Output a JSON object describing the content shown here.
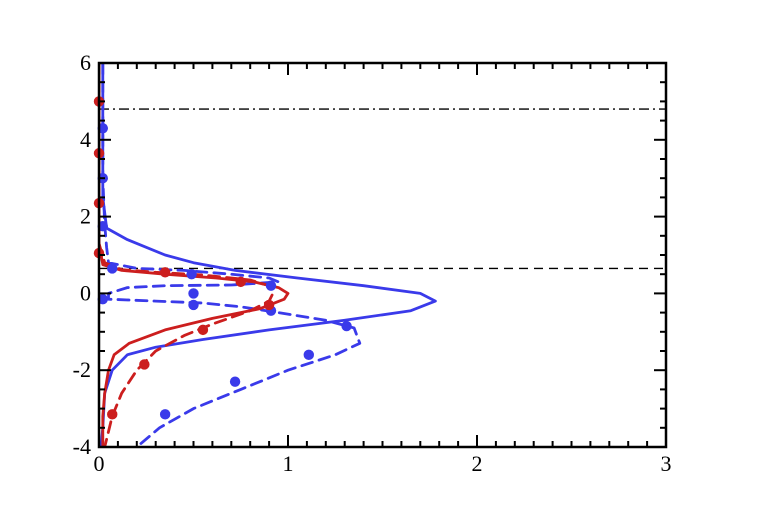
{
  "chart_data": {
    "type": "line",
    "title": "",
    "xlabel": "",
    "ylabel": "",
    "xlim": [
      0,
      3
    ],
    "ylim": [
      -4,
      6
    ],
    "grid": false,
    "legend": "none",
    "x_ticks": [
      0,
      1,
      2,
      3
    ],
    "x_tick_labels": [
      "0",
      "1",
      "2",
      "3"
    ],
    "y_ticks": [
      -4,
      -2,
      0,
      2,
      4,
      6
    ],
    "y_tick_labels": [
      "-4",
      "-2",
      "0",
      "2",
      "4",
      "6"
    ],
    "reference_lines": [
      {
        "orientation": "horizontal",
        "y": 4.8,
        "style": "dashdot",
        "color": "#000000"
      },
      {
        "orientation": "horizontal",
        "y": 0.65,
        "style": "dashed",
        "color": "#000000"
      }
    ],
    "series": [
      {
        "style": "solid",
        "color": "#3a3aea",
        "marker": "none",
        "points": [
          [
            0.02,
            6.0
          ],
          [
            0.02,
            2.5
          ],
          [
            0.04,
            1.7
          ],
          [
            0.15,
            1.4
          ],
          [
            0.35,
            1.0
          ],
          [
            0.5,
            0.8
          ],
          [
            0.72,
            0.6
          ],
          [
            1.05,
            0.4
          ],
          [
            1.4,
            0.2
          ],
          [
            1.7,
            0.0
          ],
          [
            1.78,
            -0.2
          ],
          [
            1.65,
            -0.45
          ],
          [
            1.3,
            -0.7
          ],
          [
            0.9,
            -0.95
          ],
          [
            0.55,
            -1.2
          ],
          [
            0.3,
            -1.4
          ],
          [
            0.15,
            -1.6
          ],
          [
            0.07,
            -2.0
          ],
          [
            0.03,
            -2.6
          ],
          [
            0.02,
            -3.5
          ],
          [
            0.01,
            -4.0
          ]
        ]
      },
      {
        "style": "dashed",
        "color": "#3a3aea",
        "marker": "none",
        "points": [
          [
            0.02,
            6.0
          ],
          [
            0.02,
            3.0
          ],
          [
            0.03,
            1.8
          ],
          [
            0.04,
            1.2
          ],
          [
            0.05,
            0.8
          ],
          [
            0.2,
            0.65
          ],
          [
            0.45,
            0.6
          ],
          [
            0.7,
            0.5
          ],
          [
            0.9,
            0.4
          ],
          [
            0.95,
            0.3
          ],
          [
            0.7,
            0.22
          ],
          [
            0.35,
            0.2
          ],
          [
            0.15,
            0.15
          ],
          [
            0.05,
            0.0
          ],
          [
            0.05,
            -0.15
          ],
          [
            0.3,
            -0.2
          ],
          [
            0.55,
            -0.25
          ],
          [
            0.75,
            -0.35
          ],
          [
            0.95,
            -0.5
          ],
          [
            1.2,
            -0.7
          ],
          [
            1.35,
            -0.9
          ],
          [
            1.38,
            -1.3
          ],
          [
            1.25,
            -1.6
          ],
          [
            1.0,
            -2.0
          ],
          [
            0.75,
            -2.5
          ],
          [
            0.5,
            -3.0
          ],
          [
            0.32,
            -3.5
          ],
          [
            0.2,
            -4.0
          ]
        ]
      },
      {
        "style": "solid",
        "color": "#cc1e1e",
        "marker": "none",
        "points": [
          [
            0.0,
            6.0
          ],
          [
            0.0,
            1.3
          ],
          [
            0.02,
            0.75
          ],
          [
            0.12,
            0.6
          ],
          [
            0.35,
            0.5
          ],
          [
            0.62,
            0.4
          ],
          [
            0.82,
            0.3
          ],
          [
            0.95,
            0.15
          ],
          [
            1.0,
            0.0
          ],
          [
            0.98,
            -0.15
          ],
          [
            0.85,
            -0.4
          ],
          [
            0.6,
            -0.65
          ],
          [
            0.35,
            -0.95
          ],
          [
            0.16,
            -1.3
          ],
          [
            0.08,
            -1.6
          ],
          [
            0.05,
            -2.0
          ],
          [
            0.03,
            -2.6
          ],
          [
            0.02,
            -3.2
          ],
          [
            0.02,
            -4.0
          ]
        ]
      },
      {
        "style": "dashed",
        "color": "#cc1e1e",
        "marker": "none",
        "points": [
          [
            0.0,
            6.0
          ],
          [
            0.0,
            1.3
          ],
          [
            0.03,
            0.8
          ],
          [
            0.12,
            0.62
          ],
          [
            0.3,
            0.55
          ],
          [
            0.55,
            0.48
          ],
          [
            0.8,
            0.35
          ],
          [
            0.9,
            0.2
          ],
          [
            0.92,
            0.0
          ],
          [
            0.9,
            -0.2
          ],
          [
            0.8,
            -0.45
          ],
          [
            0.6,
            -0.8
          ],
          [
            0.45,
            -1.1
          ],
          [
            0.3,
            -1.5
          ],
          [
            0.2,
            -2.0
          ],
          [
            0.12,
            -2.6
          ],
          [
            0.07,
            -3.2
          ],
          [
            0.04,
            -3.8
          ],
          [
            0.03,
            -4.0
          ]
        ]
      },
      {
        "style": "none",
        "color": "#3a3aea",
        "marker": "circle",
        "points": [
          [
            0.02,
            4.3
          ],
          [
            0.02,
            3.0
          ],
          [
            0.02,
            1.75
          ],
          [
            0.07,
            0.65
          ],
          [
            0.49,
            0.5
          ],
          [
            0.91,
            0.2
          ],
          [
            0.5,
            0.0
          ],
          [
            0.02,
            -0.15
          ],
          [
            0.5,
            -0.3
          ],
          [
            0.91,
            -0.45
          ],
          [
            1.31,
            -0.85
          ],
          [
            1.11,
            -1.6
          ],
          [
            0.72,
            -2.3
          ],
          [
            0.35,
            -3.15
          ]
        ]
      },
      {
        "style": "none",
        "color": "#cc1e1e",
        "marker": "circle",
        "points": [
          [
            0.0,
            5.0
          ],
          [
            0.0,
            3.65
          ],
          [
            0.0,
            2.35
          ],
          [
            0.0,
            1.05
          ],
          [
            0.35,
            0.55
          ],
          [
            0.75,
            0.3
          ],
          [
            0.9,
            -0.3
          ],
          [
            0.55,
            -0.95
          ],
          [
            0.24,
            -1.85
          ],
          [
            0.07,
            -3.15
          ]
        ]
      }
    ]
  }
}
